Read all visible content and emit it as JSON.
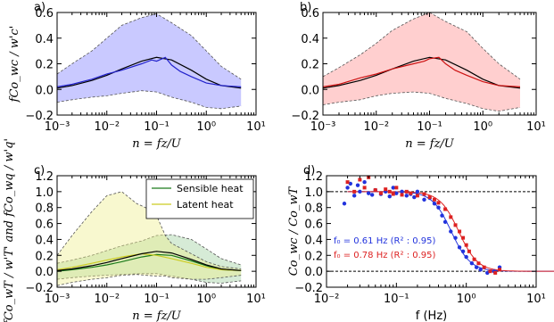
{
  "chart_data": [
    {
      "panel_label": "a)",
      "type": "line",
      "xscale": "log",
      "xlim": [
        0.001,
        10
      ],
      "ylim": [
        -0.2,
        0.6
      ],
      "xticks": [
        "10⁻³",
        "10⁻²",
        "10⁻¹",
        "10⁰",
        "10¹"
      ],
      "yticks": [
        "−0.2",
        "0.0",
        "0.2",
        "0.4",
        "0.6"
      ],
      "xlabel": "n = fz/U",
      "ylabel": "fCo_wc / w'c'",
      "band_color": "#7777ff",
      "band": {
        "x": [
          0.001,
          0.002,
          0.005,
          0.01,
          0.02,
          0.05,
          0.1,
          0.2,
          0.5,
          1,
          2,
          5
        ],
        "upper": [
          0.12,
          0.2,
          0.3,
          0.4,
          0.5,
          0.56,
          0.59,
          0.52,
          0.42,
          0.3,
          0.18,
          0.08
        ],
        "lower": [
          -0.1,
          -0.08,
          -0.06,
          -0.05,
          -0.03,
          -0.01,
          -0.02,
          -0.06,
          -0.1,
          -0.14,
          -0.15,
          -0.13
        ]
      },
      "series": [
        {
          "values_x": [
            0.001,
            0.002,
            0.005,
            0.01,
            0.02,
            0.05,
            0.1,
            0.2,
            0.5,
            1,
            2,
            5
          ],
          "values_y": [
            0.01,
            0.03,
            0.07,
            0.11,
            0.16,
            0.22,
            0.25,
            0.23,
            0.15,
            0.08,
            0.03,
            0.01
          ],
          "color": "#000000"
        },
        {
          "values_x": [
            0.001,
            0.002,
            0.005,
            0.01,
            0.02,
            0.05,
            0.08,
            0.1,
            0.15,
            0.2,
            0.3,
            0.5,
            1,
            2,
            5
          ],
          "values_y": [
            0.02,
            0.04,
            0.08,
            0.12,
            0.15,
            0.2,
            0.23,
            0.22,
            0.25,
            0.19,
            0.14,
            0.1,
            0.05,
            0.03,
            0.02
          ],
          "color": "#2222cc"
        }
      ]
    },
    {
      "panel_label": "b)",
      "type": "line",
      "xscale": "log",
      "xlim": [
        0.001,
        10
      ],
      "ylim": [
        -0.2,
        0.6
      ],
      "xticks": [
        "10⁻³",
        "10⁻²",
        "10⁻¹",
        "10⁰",
        "10¹"
      ],
      "yticks": [
        "−0.2",
        "0.0",
        "0.2",
        "0.4",
        "0.6"
      ],
      "xlabel": "n = fz/U",
      "ylabel": "",
      "band_color": "#ff8888",
      "band": {
        "x": [
          0.001,
          0.002,
          0.005,
          0.01,
          0.02,
          0.05,
          0.1,
          0.2,
          0.5,
          1,
          2,
          5
        ],
        "upper": [
          0.1,
          0.17,
          0.27,
          0.36,
          0.46,
          0.55,
          0.6,
          0.53,
          0.45,
          0.32,
          0.2,
          0.08
        ],
        "lower": [
          -0.12,
          -0.1,
          -0.08,
          -0.05,
          -0.03,
          -0.02,
          -0.03,
          -0.07,
          -0.11,
          -0.15,
          -0.17,
          -0.14
        ]
      },
      "series": [
        {
          "values_x": [
            0.001,
            0.002,
            0.005,
            0.01,
            0.02,
            0.05,
            0.1,
            0.2,
            0.5,
            1,
            2,
            5
          ],
          "values_y": [
            0.01,
            0.03,
            0.07,
            0.11,
            0.16,
            0.22,
            0.25,
            0.23,
            0.15,
            0.08,
            0.03,
            0.01
          ],
          "color": "#000000"
        },
        {
          "values_x": [
            0.001,
            0.002,
            0.005,
            0.01,
            0.02,
            0.05,
            0.08,
            0.1,
            0.15,
            0.2,
            0.3,
            0.5,
            1,
            2,
            5
          ],
          "values_y": [
            0.02,
            0.04,
            0.09,
            0.12,
            0.16,
            0.2,
            0.22,
            0.24,
            0.25,
            0.2,
            0.15,
            0.11,
            0.06,
            0.03,
            0.02
          ],
          "color": "#cc1111"
        }
      ]
    },
    {
      "panel_label": "c)",
      "type": "line",
      "xscale": "log",
      "xlim": [
        0.001,
        10
      ],
      "ylim": [
        -0.2,
        1.2
      ],
      "xticks": [
        "10⁻³",
        "10⁻²",
        "10⁻¹",
        "10⁰",
        "10¹"
      ],
      "yticks": [
        "−0.2",
        "0.0",
        "0.2",
        "0.4",
        "0.6",
        "0.8",
        "1.0",
        "1.2"
      ],
      "xlabel": "n = fz/U",
      "ylabel": "fCo_wT / w'T' and fCo_wq / w'q'",
      "legend": [
        "Sensible heat",
        "Latent heat"
      ],
      "legend_position": "top-right",
      "bands": [
        {
          "color": "#99cc99",
          "x": [
            0.001,
            0.002,
            0.005,
            0.01,
            0.02,
            0.05,
            0.1,
            0.2,
            0.5,
            1,
            2,
            5
          ],
          "upper": [
            0.1,
            0.14,
            0.2,
            0.26,
            0.32,
            0.38,
            0.45,
            0.46,
            0.4,
            0.28,
            0.16,
            0.08
          ],
          "lower": [
            -0.1,
            -0.08,
            -0.06,
            -0.05,
            -0.04,
            -0.03,
            -0.03,
            -0.06,
            -0.1,
            -0.14,
            -0.15,
            -0.12
          ]
        },
        {
          "color": "#eeee88",
          "x": [
            0.001,
            0.002,
            0.005,
            0.01,
            0.02,
            0.04,
            0.06,
            0.1,
            0.15,
            0.2,
            0.5,
            1,
            2,
            5
          ],
          "upper": [
            0.2,
            0.45,
            0.75,
            0.95,
            1.0,
            0.85,
            0.8,
            0.7,
            0.45,
            0.35,
            0.22,
            0.12,
            0.06,
            0.03
          ],
          "lower": [
            -0.18,
            -0.14,
            -0.1,
            -0.08,
            -0.05,
            -0.04,
            -0.05,
            -0.06,
            -0.06,
            -0.08,
            -0.1,
            -0.1,
            -0.08,
            -0.05
          ]
        }
      ],
      "series": [
        {
          "name": "Sensible heat",
          "color": "#1a7a1a",
          "values_x": [
            0.001,
            0.002,
            0.005,
            0.01,
            0.02,
            0.05,
            0.1,
            0.2,
            0.5,
            1,
            2,
            5
          ],
          "values_y": [
            0.0,
            0.02,
            0.05,
            0.08,
            0.12,
            0.18,
            0.21,
            0.2,
            0.13,
            0.07,
            0.02,
            0.01
          ]
        },
        {
          "name": "Latent heat",
          "color": "#cccc22",
          "values_x": [
            0.001,
            0.002,
            0.005,
            0.01,
            0.02,
            0.05,
            0.1,
            0.2,
            0.5,
            1,
            2,
            5
          ],
          "values_y": [
            0.02,
            0.05,
            0.1,
            0.14,
            0.18,
            0.22,
            0.2,
            0.16,
            0.1,
            0.05,
            0.02,
            0.01
          ]
        },
        {
          "color": "#000000",
          "values_x": [
            0.001,
            0.002,
            0.005,
            0.01,
            0.02,
            0.05,
            0.1,
            0.2,
            0.5,
            1,
            2,
            5
          ],
          "values_y": [
            0.01,
            0.03,
            0.07,
            0.11,
            0.16,
            0.22,
            0.25,
            0.23,
            0.15,
            0.08,
            0.03,
            0.01
          ]
        }
      ]
    },
    {
      "panel_label": "d)",
      "type": "scatter",
      "xscale": "log",
      "xlim": [
        0.01,
        10
      ],
      "ylim": [
        -0.2,
        1.2
      ],
      "xticks": [
        "10⁻²",
        "10⁻¹",
        "10⁰",
        "10¹"
      ],
      "yticks": [
        "−0.2",
        "0.0",
        "0.2",
        "0.4",
        "0.6",
        "0.8",
        "1.0",
        "1.2"
      ],
      "xlabel": "f (Hz)",
      "ylabel": "Co_wc / Co_wT",
      "hlines": [
        0.0,
        1.0
      ],
      "series": [
        {
          "color": "#2233dd",
          "marker": "circle",
          "x": [
            0.018,
            0.02,
            0.022,
            0.025,
            0.028,
            0.03,
            0.035,
            0.04,
            0.045,
            0.05,
            0.06,
            0.07,
            0.08,
            0.09,
            0.1,
            0.12,
            0.14,
            0.16,
            0.18,
            0.2,
            0.25,
            0.3,
            0.35,
            0.4,
            0.45,
            0.5,
            0.6,
            0.7,
            0.8,
            0.9,
            1.0,
            1.2,
            1.4,
            1.6,
            2.0,
            2.5,
            3.0
          ],
          "y": [
            0.85,
            1.05,
            1.1,
            0.95,
            1.08,
            1.0,
            1.12,
            0.98,
            0.96,
            1.02,
            0.97,
            1.0,
            0.94,
            1.05,
            0.98,
            1.0,
            0.95,
            0.97,
            0.93,
            1.0,
            0.9,
            0.92,
            0.85,
            0.8,
            0.7,
            0.62,
            0.5,
            0.42,
            0.3,
            0.25,
            0.18,
            0.1,
            0.05,
            0.02,
            -0.02,
            0.0,
            0.05
          ]
        },
        {
          "color": "#dd2222",
          "marker": "square",
          "x": [
            0.02,
            0.025,
            0.03,
            0.035,
            0.04,
            0.05,
            0.06,
            0.07,
            0.08,
            0.09,
            0.1,
            0.12,
            0.14,
            0.16,
            0.2,
            0.25,
            0.3,
            0.35,
            0.4,
            0.5,
            0.6,
            0.7,
            0.8,
            0.9,
            1.0,
            1.1,
            1.3,
            1.5,
            1.8,
            2.2,
            2.6,
            3.0
          ],
          "y": [
            1.12,
            1.0,
            1.15,
            1.05,
            1.18,
            1.02,
            0.98,
            1.03,
            1.0,
            0.97,
            1.05,
            0.96,
            1.0,
            0.98,
            0.95,
            0.97,
            0.93,
            0.9,
            0.86,
            0.78,
            0.68,
            0.58,
            0.5,
            0.42,
            0.33,
            0.25,
            0.15,
            0.1,
            0.05,
            0.0,
            -0.02,
            0.02
          ]
        }
      ],
      "fits": [
        {
          "color": "#2233dd",
          "f0": 0.61
        },
        {
          "color": "#dd2222",
          "f0": 0.78
        }
      ],
      "annotations": [
        {
          "text": "f₀ = 0.61 Hz (R² : 0.95)",
          "color": "#2233dd"
        },
        {
          "text": "f₀ = 0.78 Hz (R² : 0.95)",
          "color": "#dd2222"
        }
      ]
    }
  ]
}
